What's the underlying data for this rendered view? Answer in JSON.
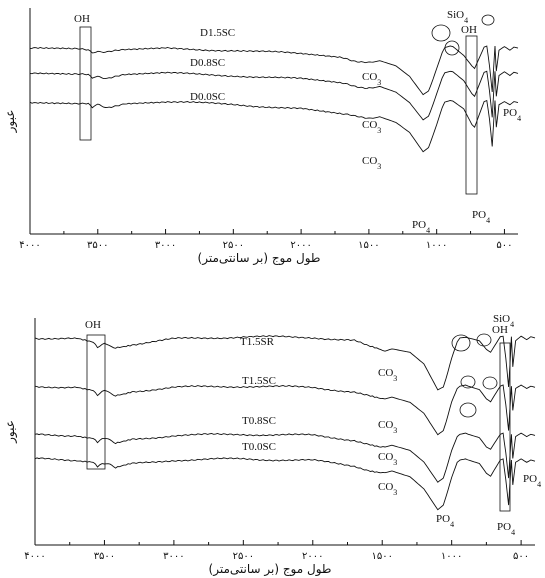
{
  "chart_data": [
    {
      "type": "line",
      "xlabel": "طول موج (بر سانتی‌متر)",
      "ylabel": "عبور",
      "xlim": [
        4000,
        400
      ],
      "x_ticks": [
        "۴۰۰۰",
        "۳۵۰۰",
        "۳۰۰۰",
        "۲۵۰۰",
        "۲۰۰۰",
        "۱۵۰۰",
        "۱۰۰۰",
        "۵۰۰"
      ],
      "x_tick_values": [
        4000,
        3500,
        3000,
        2500,
        2000,
        1500,
        1000,
        500
      ],
      "series": [
        {
          "name": "D1.5SC",
          "x": [
            4000,
            3700,
            3570,
            3540,
            3500,
            3430,
            3300,
            3000,
            2500,
            2000,
            1700,
            1600,
            1470,
            1420,
            1300,
            1200,
            1100,
            1060,
            1040,
            1000,
            960,
            940,
            900,
            880,
            800,
            740,
            720,
            650,
            630,
            610,
            590,
            580,
            570,
            560,
            540,
            500,
            460,
            430,
            400
          ],
          "y": [
            0.93,
            0.92,
            0.9,
            0.85,
            0.89,
            0.86,
            0.9,
            0.93,
            0.9,
            0.83,
            0.75,
            0.7,
            0.67,
            0.7,
            0.6,
            0.4,
            0.05,
            0.12,
            0.25,
            0.55,
            0.85,
            0.95,
            0.98,
            0.97,
            0.8,
            0.6,
            0.55,
            0.96,
            0.98,
            0.6,
            0.1,
            0.55,
            0.98,
            0.5,
            0.9,
            0.97,
            0.9,
            0.96,
            0.94
          ]
        },
        {
          "name": "D0.8SC",
          "x": [
            4000,
            3700,
            3570,
            3540,
            3500,
            3430,
            3300,
            3000,
            2500,
            2000,
            1700,
            1600,
            1470,
            1420,
            1300,
            1200,
            1100,
            1060,
            1040,
            1000,
            960,
            940,
            900,
            880,
            800,
            740,
            720,
            650,
            630,
            610,
            590,
            580,
            570,
            560,
            540,
            500,
            460,
            430,
            400
          ],
          "y": [
            0.84,
            0.83,
            0.8,
            0.74,
            0.79,
            0.75,
            0.8,
            0.84,
            0.8,
            0.73,
            0.64,
            0.59,
            0.56,
            0.59,
            0.48,
            0.28,
            -0.05,
            0.02,
            0.15,
            0.45,
            0.75,
            0.85,
            0.88,
            0.87,
            0.7,
            0.45,
            0.4,
            0.86,
            0.88,
            0.5,
            0.0,
            0.45,
            0.88,
            0.4,
            0.8,
            0.87,
            0.8,
            0.86,
            0.84
          ]
        },
        {
          "name": "D0.0SC",
          "x": [
            4000,
            3700,
            3570,
            3540,
            3500,
            3430,
            3300,
            3000,
            2500,
            2000,
            1700,
            1600,
            1470,
            1420,
            1300,
            1200,
            1100,
            1060,
            1040,
            1000,
            960,
            940,
            900,
            880,
            800,
            740,
            720,
            650,
            630,
            610,
            590,
            580,
            570,
            560,
            540,
            500,
            460,
            430,
            400
          ],
          "y": [
            0.73,
            0.72,
            0.69,
            0.62,
            0.68,
            0.64,
            0.69,
            0.73,
            0.69,
            0.6,
            0.5,
            0.45,
            0.42,
            0.45,
            0.34,
            0.15,
            -0.22,
            -0.14,
            0.0,
            0.3,
            0.62,
            0.73,
            0.76,
            0.75,
            0.6,
            0.3,
            0.25,
            0.74,
            0.76,
            0.4,
            -0.12,
            0.33,
            0.76,
            0.25,
            0.68,
            0.74,
            0.68,
            0.74,
            0.72
          ]
        }
      ],
      "annotations": [
        {
          "text": "OH"
        },
        {
          "text": "SiO",
          "sub": "4"
        },
        {
          "text": "OH"
        },
        {
          "text": "CO",
          "sub": "3"
        },
        {
          "text": "CO",
          "sub": "3"
        },
        {
          "text": "CO",
          "sub": "3"
        },
        {
          "text": "PO",
          "sub": "4"
        },
        {
          "text": "PO",
          "sub": "4"
        },
        {
          "text": "PO",
          "sub": "4"
        }
      ]
    },
    {
      "type": "line",
      "xlabel": "طول موج (بر سانتی‌متر)",
      "ylabel": "عبور",
      "xlim": [
        4000,
        400
      ],
      "x_ticks": [
        "۴۰۰۰",
        "۳۵۰۰",
        "۳۰۰۰",
        "۲۵۰۰",
        "۲۰۰۰",
        "۱۵۰۰",
        "۱۰۰۰",
        "۵۰۰"
      ],
      "x_tick_values": [
        4000,
        3500,
        3000,
        2500,
        2000,
        1500,
        1000,
        500
      ],
      "series": [
        {
          "name": "T1.5SR",
          "x": [
            4000,
            3700,
            3580,
            3550,
            3500,
            3420,
            3300,
            3000,
            2500,
            2000,
            1700,
            1600,
            1480,
            1430,
            1300,
            1200,
            1100,
            1060,
            1040,
            1000,
            960,
            940,
            900,
            880,
            800,
            750,
            720,
            650,
            630,
            610,
            590,
            580,
            570,
            560,
            540,
            500,
            460,
            430,
            400
          ],
          "y": [
            0.95,
            0.93,
            0.88,
            0.8,
            0.86,
            0.78,
            0.84,
            0.93,
            0.97,
            0.96,
            0.9,
            0.8,
            0.72,
            0.76,
            0.7,
            0.5,
            0.05,
            0.1,
            0.25,
            0.6,
            0.88,
            0.95,
            0.96,
            0.95,
            0.9,
            0.75,
            0.7,
            0.97,
            0.98,
            0.6,
            0.1,
            0.5,
            0.97,
            0.45,
            0.9,
            0.98,
            0.92,
            0.97,
            0.95
          ]
        },
        {
          "name": "T1.5SC",
          "x": [
            4000,
            3700,
            3580,
            3550,
            3500,
            3420,
            3300,
            3000,
            2500,
            2000,
            1700,
            1600,
            1480,
            1430,
            1300,
            1200,
            1100,
            1060,
            1040,
            1000,
            960,
            940,
            900,
            880,
            800,
            750,
            720,
            650,
            630,
            610,
            590,
            580,
            570,
            560,
            540,
            500,
            460,
            430,
            400
          ],
          "y": [
            0.72,
            0.7,
            0.66,
            0.58,
            0.64,
            0.57,
            0.63,
            0.7,
            0.72,
            0.7,
            0.62,
            0.55,
            0.5,
            0.53,
            0.44,
            0.25,
            -0.12,
            -0.05,
            0.1,
            0.45,
            0.68,
            0.72,
            0.74,
            0.72,
            0.66,
            0.5,
            0.45,
            0.72,
            0.74,
            0.4,
            -0.05,
            0.35,
            0.72,
            0.3,
            0.68,
            0.74,
            0.68,
            0.72,
            0.7
          ]
        },
        {
          "name": "T0.8SC",
          "x": [
            4000,
            3700,
            3580,
            3550,
            3500,
            3420,
            3300,
            3000,
            2500,
            2000,
            1700,
            1600,
            1480,
            1430,
            1300,
            1200,
            1100,
            1060,
            1040,
            1000,
            960,
            940,
            900,
            880,
            800,
            750,
            720,
            650,
            630,
            610,
            590,
            580,
            570,
            560,
            540,
            500,
            460,
            430,
            400
          ],
          "y": [
            0.58,
            0.56,
            0.52,
            0.45,
            0.5,
            0.44,
            0.49,
            0.56,
            0.58,
            0.56,
            0.48,
            0.41,
            0.36,
            0.39,
            0.3,
            0.1,
            -0.25,
            -0.18,
            -0.03,
            0.3,
            0.54,
            0.58,
            0.6,
            0.58,
            0.52,
            0.36,
            0.32,
            0.58,
            0.6,
            0.26,
            -0.18,
            0.22,
            0.58,
            0.16,
            0.54,
            0.6,
            0.54,
            0.58,
            0.56
          ]
        },
        {
          "name": "T0.0SC",
          "x": [
            4000,
            3700,
            3580,
            3550,
            3500,
            3420,
            3300,
            3000,
            2500,
            2000,
            1700,
            1600,
            1480,
            1430,
            1300,
            1200,
            1100,
            1060,
            1040,
            1000,
            960,
            940,
            900,
            880,
            800,
            750,
            720,
            650,
            630,
            610,
            590,
            580,
            570,
            560,
            540,
            500,
            460,
            430,
            400
          ],
          "y": [
            0.5,
            0.48,
            0.44,
            0.36,
            0.42,
            0.35,
            0.41,
            0.48,
            0.5,
            0.47,
            0.38,
            0.31,
            0.26,
            0.29,
            0.19,
            -0.02,
            -0.38,
            -0.3,
            -0.15,
            0.18,
            0.44,
            0.48,
            0.5,
            0.48,
            0.42,
            0.25,
            0.2,
            0.48,
            0.5,
            0.14,
            -0.3,
            0.1,
            0.48,
            0.05,
            0.44,
            0.5,
            0.44,
            0.48,
            0.46
          ]
        }
      ],
      "annotations": [
        {
          "text": "OH"
        },
        {
          "text": "SiO",
          "sub": "4"
        },
        {
          "text": "OH"
        },
        {
          "text": "CO",
          "sub": "3"
        },
        {
          "text": "CO",
          "sub": "3"
        },
        {
          "text": "CO",
          "sub": "3"
        },
        {
          "text": "CO",
          "sub": "3"
        },
        {
          "text": "PO",
          "sub": "4"
        },
        {
          "text": "PO",
          "sub": "4"
        },
        {
          "text": "PO",
          "sub": "4"
        }
      ]
    }
  ]
}
